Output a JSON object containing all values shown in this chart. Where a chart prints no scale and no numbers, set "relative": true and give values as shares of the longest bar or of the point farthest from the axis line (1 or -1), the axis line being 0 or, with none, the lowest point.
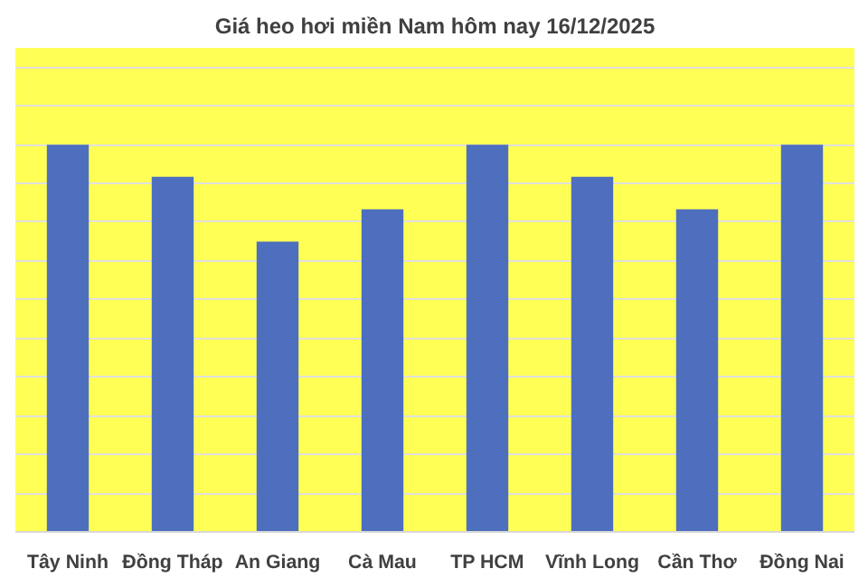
{
  "chart_data": {
    "type": "bar",
    "title": "Giá heo hơi miền Nam hôm nay 16/12/2025",
    "categories": [
      "Tây Ninh",
      "Đồng Tháp",
      "An Giang",
      "Cà Mau",
      "TP HCM",
      "Vĩnh Long",
      "Cần Thơ",
      "Đồng Nai"
    ],
    "values": [
      1,
      0.917,
      0.75,
      0.833,
      1,
      0.917,
      0.833,
      1
    ],
    "relative": true,
    "color": "#4e6fbe",
    "grid": "y"
  }
}
